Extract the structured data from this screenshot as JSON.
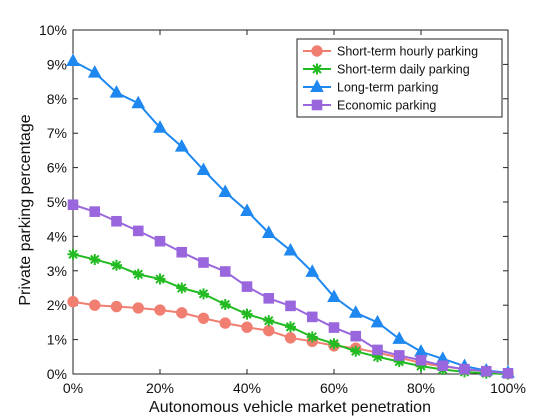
{
  "chart_data": {
    "type": "line",
    "xlabel": "Autonomous vehicle market penetration",
    "ylabel": "Private parking percentage",
    "x": [
      0,
      5,
      10,
      15,
      20,
      25,
      30,
      35,
      40,
      45,
      50,
      55,
      60,
      65,
      70,
      75,
      80,
      85,
      90,
      95,
      100
    ],
    "xlim": [
      0,
      100
    ],
    "ylim": [
      0,
      10
    ],
    "x_ticks": [
      "0%",
      "20%",
      "40%",
      "60%",
      "80%",
      "100%"
    ],
    "y_ticks": [
      "0%",
      "1%",
      "2%",
      "3%",
      "4%",
      "5%",
      "6%",
      "7%",
      "8%",
      "9%",
      "10%"
    ],
    "grid": false,
    "legend_position": "top-right",
    "series": [
      {
        "name": "Short-term hourly parking",
        "color": "#f07f72",
        "marker": "circle",
        "values": [
          2.1,
          2.0,
          1.96,
          1.92,
          1.86,
          1.78,
          1.62,
          1.48,
          1.36,
          1.26,
          1.05,
          0.95,
          0.82,
          0.75,
          0.62,
          0.48,
          0.32,
          0.22,
          0.14,
          0.08,
          0.02
        ]
      },
      {
        "name": "Short-term daily parking",
        "color": "#22bb22",
        "marker": "asterisk",
        "values": [
          3.48,
          3.33,
          3.16,
          2.9,
          2.76,
          2.5,
          2.33,
          2.02,
          1.74,
          1.55,
          1.37,
          1.08,
          0.88,
          0.66,
          0.5,
          0.36,
          0.23,
          0.13,
          0.06,
          0.02,
          0.0
        ]
      },
      {
        "name": "Long-term parking",
        "color": "#1e88f0",
        "marker": "triangle",
        "values": [
          9.1,
          8.76,
          8.18,
          7.87,
          7.16,
          6.61,
          5.93,
          5.29,
          4.74,
          4.1,
          3.59,
          2.97,
          2.24,
          1.78,
          1.5,
          1.02,
          0.65,
          0.44,
          0.23,
          0.1,
          0.04
        ]
      },
      {
        "name": "Economic parking",
        "color": "#9966dd",
        "marker": "square",
        "values": [
          4.92,
          4.72,
          4.44,
          4.16,
          3.86,
          3.54,
          3.24,
          2.98,
          2.54,
          2.2,
          1.98,
          1.66,
          1.35,
          1.1,
          0.7,
          0.54,
          0.4,
          0.24,
          0.14,
          0.08,
          0.02
        ]
      }
    ]
  }
}
